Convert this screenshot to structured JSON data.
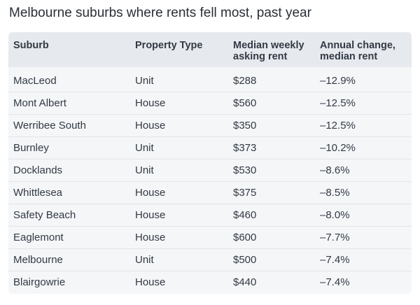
{
  "title": "Melbourne suburbs where rents fell most, past year",
  "table": {
    "headers": [
      "Suburb",
      "Property Type",
      "Median weekly\nasking rent",
      "Annual change,\nmedian rent"
    ],
    "rows": [
      [
        "MacLeod",
        "Unit",
        "$288",
        "–12.9%"
      ],
      [
        "Mont Albert",
        "House",
        "$560",
        "–12.5%"
      ],
      [
        "Werribee South",
        "House",
        "$350",
        "–12.5%"
      ],
      [
        "Burnley",
        "Unit",
        "$373",
        "–10.2%"
      ],
      [
        "Docklands",
        "Unit",
        "$530",
        "–8.6%"
      ],
      [
        "Whittlesea",
        "House",
        "$375",
        "–8.5%"
      ],
      [
        "Safety Beach",
        "House",
        "$460",
        "–8.0%"
      ],
      [
        "Eaglemont",
        "House",
        "$600",
        "–7.7%"
      ],
      [
        "Melbourne",
        "Unit",
        "$500",
        "–7.4%"
      ],
      [
        "Blairgowrie",
        "House",
        "$440",
        "–7.4%"
      ]
    ]
  }
}
